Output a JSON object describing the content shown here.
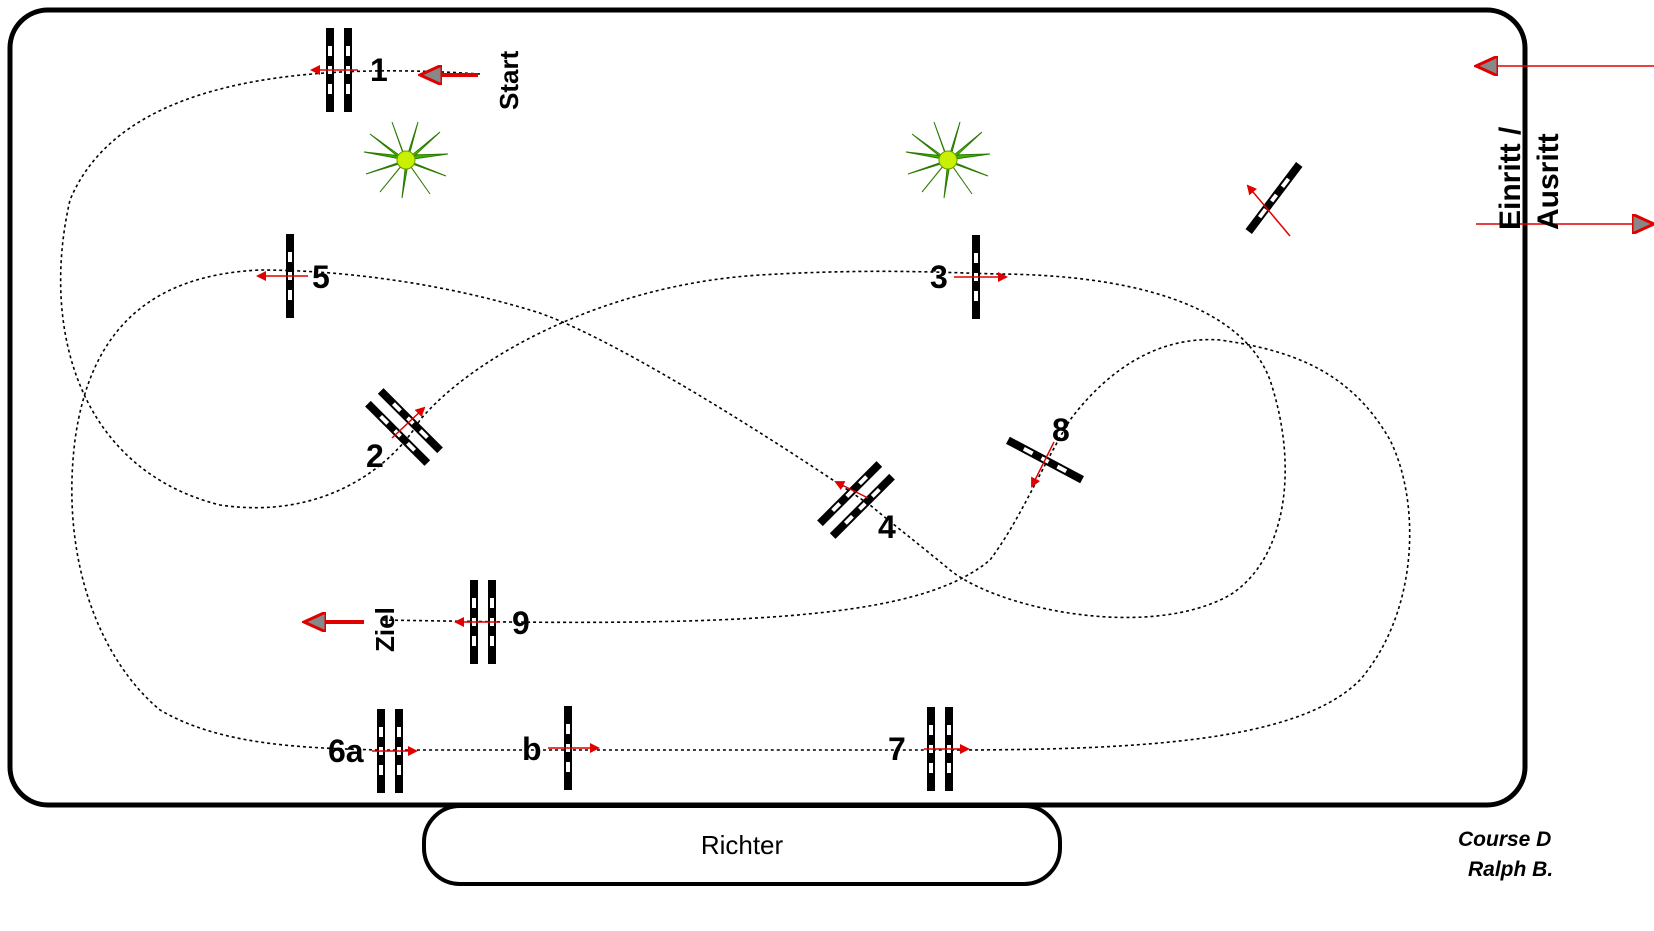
{
  "arena": {
    "entry_exit_line1": "Einritt /",
    "entry_exit_line2": "Ausritt"
  },
  "start_label": "Start",
  "finish_label": "Ziel",
  "judge_label": "Richter",
  "credit": {
    "line1": "Course D",
    "line2": "Ralph B."
  },
  "obstacles": [
    {
      "id": "1",
      "label": "1",
      "kind": "oxer"
    },
    {
      "id": "2",
      "label": "2",
      "kind": "oxer"
    },
    {
      "id": "3",
      "label": "3",
      "kind": "vertical"
    },
    {
      "id": "4",
      "label": "4",
      "kind": "oxer"
    },
    {
      "id": "5",
      "label": "5",
      "kind": "vertical"
    },
    {
      "id": "6a",
      "label": "6a",
      "kind": "oxer"
    },
    {
      "id": "6b",
      "label": "b",
      "kind": "vertical"
    },
    {
      "id": "7",
      "label": "7",
      "kind": "oxer"
    },
    {
      "id": "8",
      "label": "8",
      "kind": "vertical"
    },
    {
      "id": "9",
      "label": "9",
      "kind": "oxer"
    }
  ],
  "colors": {
    "arrow": "#e00000",
    "rail_dark": "#000000",
    "rail_light": "#ffffff",
    "plant_green": "#3cb400",
    "plant_light": "#c8f000",
    "path": "#000000"
  }
}
